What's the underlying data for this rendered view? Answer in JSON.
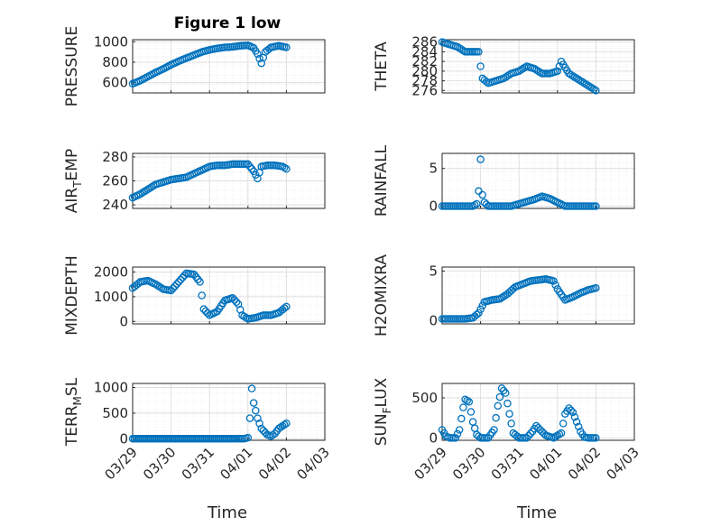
{
  "figure": {
    "title": "Figure 1 low",
    "xlabel": "Time"
  },
  "colors": {
    "marker": "#0072BD",
    "axis": "#262626",
    "grid": "#dfdfdf",
    "minor_grid": "#ebebeb"
  },
  "chart_data": [
    {
      "type": "scatter",
      "ylabel": "PRESSURE",
      "ylabel_sub": "",
      "yticks": [
        600,
        800,
        1000
      ],
      "ylim": [
        500,
        1020
      ],
      "xticks": [
        "03/29",
        "03/30",
        "03/31",
        "04/01",
        "04/02",
        "04/03"
      ],
      "xlim": [
        0,
        5
      ],
      "x_range": [
        0,
        4.0
      ],
      "grid": true,
      "minor_grid": true,
      "points": [
        [
          0,
          590
        ],
        [
          0.2,
          620
        ],
        [
          0.4,
          660
        ],
        [
          0.6,
          700
        ],
        [
          0.8,
          735
        ],
        [
          1.0,
          775
        ],
        [
          1.2,
          810
        ],
        [
          1.4,
          840
        ],
        [
          1.6,
          870
        ],
        [
          1.8,
          900
        ],
        [
          2.0,
          920
        ],
        [
          2.2,
          935
        ],
        [
          2.4,
          945
        ],
        [
          2.6,
          950
        ],
        [
          2.8,
          960
        ],
        [
          3.0,
          965
        ],
        [
          3.15,
          940
        ],
        [
          3.25,
          880
        ],
        [
          3.35,
          790
        ],
        [
          3.45,
          900
        ],
        [
          3.6,
          945
        ],
        [
          3.8,
          960
        ],
        [
          4.0,
          945
        ]
      ]
    },
    {
      "type": "scatter",
      "ylabel": "THETA",
      "ylabel_sub": "",
      "yticks": [
        276,
        278,
        280,
        282,
        284,
        286
      ],
      "ylim": [
        275.5,
        286.5
      ],
      "xticks": [
        "03/29",
        "03/30",
        "03/31",
        "04/01",
        "04/02",
        "04/03"
      ],
      "xlim": [
        0,
        5
      ],
      "x_range": [
        0,
        4.0
      ],
      "grid": true,
      "minor_grid": true,
      "points": [
        [
          0,
          286
        ],
        [
          0.2,
          285.5
        ],
        [
          0.4,
          285
        ],
        [
          0.6,
          284
        ],
        [
          0.8,
          284
        ],
        [
          0.95,
          284
        ],
        [
          1.0,
          281
        ],
        [
          1.05,
          278.5
        ],
        [
          1.2,
          277.5
        ],
        [
          1.4,
          278
        ],
        [
          1.6,
          278.5
        ],
        [
          1.8,
          279.5
        ],
        [
          2.0,
          280
        ],
        [
          2.2,
          281
        ],
        [
          2.4,
          280.5
        ],
        [
          2.6,
          279.5
        ],
        [
          2.8,
          279.5
        ],
        [
          3.0,
          280
        ],
        [
          3.1,
          282
        ],
        [
          3.3,
          279.5
        ],
        [
          3.5,
          278.5
        ],
        [
          3.7,
          277.5
        ],
        [
          3.9,
          276.5
        ],
        [
          4.0,
          276
        ]
      ]
    },
    {
      "type": "scatter",
      "ylabel": "AIR",
      "ylabel_sub": "TEMP",
      "yticks": [
        240,
        260,
        280
      ],
      "ylim": [
        237,
        283
      ],
      "xticks": [
        "03/29",
        "03/30",
        "03/31",
        "04/01",
        "04/02",
        "04/03"
      ],
      "xlim": [
        0,
        5
      ],
      "x_range": [
        0,
        4.0
      ],
      "grid": true,
      "minor_grid": true,
      "points": [
        [
          0,
          246
        ],
        [
          0.2,
          249
        ],
        [
          0.4,
          253
        ],
        [
          0.6,
          257
        ],
        [
          0.8,
          259
        ],
        [
          1.0,
          261
        ],
        [
          1.2,
          262
        ],
        [
          1.4,
          263
        ],
        [
          1.6,
          266
        ],
        [
          1.8,
          269
        ],
        [
          2.0,
          272
        ],
        [
          2.2,
          273
        ],
        [
          2.4,
          273
        ],
        [
          2.6,
          274
        ],
        [
          2.8,
          274
        ],
        [
          3.0,
          274
        ],
        [
          3.15,
          268
        ],
        [
          3.25,
          262
        ],
        [
          3.35,
          272
        ],
        [
          3.5,
          273
        ],
        [
          3.7,
          273
        ],
        [
          3.9,
          272
        ],
        [
          4.0,
          270
        ]
      ]
    },
    {
      "type": "scatter",
      "ylabel": "RAINFALL",
      "ylabel_sub": "",
      "yticks": [
        0,
        5
      ],
      "ylim": [
        -0.3,
        7
      ],
      "xticks": [
        "03/29",
        "03/30",
        "03/31",
        "04/01",
        "04/02",
        "04/03"
      ],
      "xlim": [
        0,
        5
      ],
      "x_range": [
        0,
        4.0
      ],
      "grid": true,
      "minor_grid": true,
      "points": [
        [
          0,
          0
        ],
        [
          0.2,
          0
        ],
        [
          0.4,
          0
        ],
        [
          0.6,
          0
        ],
        [
          0.8,
          0
        ],
        [
          0.9,
          0.3
        ],
        [
          0.95,
          2
        ],
        [
          1.0,
          6.2
        ],
        [
          1.05,
          1.5
        ],
        [
          1.1,
          0.5
        ],
        [
          1.2,
          0
        ],
        [
          1.4,
          0
        ],
        [
          1.6,
          0
        ],
        [
          1.8,
          0
        ],
        [
          2.0,
          0.3
        ],
        [
          2.2,
          0.6
        ],
        [
          2.4,
          0.9
        ],
        [
          2.6,
          1.3
        ],
        [
          2.8,
          1
        ],
        [
          3.0,
          0.5
        ],
        [
          3.2,
          0
        ],
        [
          3.4,
          0
        ],
        [
          3.6,
          0
        ],
        [
          3.8,
          0
        ],
        [
          4.0,
          0
        ]
      ]
    },
    {
      "type": "scatter",
      "ylabel": "MIXDEPTH",
      "ylabel_sub": "",
      "yticks": [
        0,
        1000,
        2000
      ],
      "ylim": [
        -100,
        2200
      ],
      "xticks": [
        "03/29",
        "03/30",
        "03/31",
        "04/01",
        "04/02",
        "04/03"
      ],
      "xlim": [
        0,
        5
      ],
      "x_range": [
        0,
        4.0
      ],
      "grid": true,
      "minor_grid": true,
      "points": [
        [
          0,
          1350
        ],
        [
          0.2,
          1600
        ],
        [
          0.4,
          1650
        ],
        [
          0.6,
          1500
        ],
        [
          0.8,
          1300
        ],
        [
          1.0,
          1250
        ],
        [
          1.2,
          1600
        ],
        [
          1.4,
          1950
        ],
        [
          1.6,
          1900
        ],
        [
          1.75,
          1600
        ],
        [
          1.85,
          500
        ],
        [
          2.0,
          250
        ],
        [
          2.2,
          400
        ],
        [
          2.4,
          850
        ],
        [
          2.6,
          950
        ],
        [
          2.75,
          700
        ],
        [
          2.85,
          250
        ],
        [
          3.0,
          100
        ],
        [
          3.2,
          150
        ],
        [
          3.4,
          250
        ],
        [
          3.6,
          250
        ],
        [
          3.8,
          350
        ],
        [
          4.0,
          600
        ]
      ]
    },
    {
      "type": "scatter",
      "ylabel": "H2OMIXRA",
      "ylabel_sub": "",
      "yticks": [
        0,
        5
      ],
      "ylim": [
        -0.3,
        5.4
      ],
      "xticks": [
        "03/29",
        "03/30",
        "03/31",
        "04/01",
        "04/02",
        "04/03"
      ],
      "xlim": [
        0,
        5
      ],
      "x_range": [
        0,
        4.0
      ],
      "grid": true,
      "minor_grid": true,
      "points": [
        [
          0,
          0.2
        ],
        [
          0.2,
          0.2
        ],
        [
          0.4,
          0.2
        ],
        [
          0.6,
          0.2
        ],
        [
          0.8,
          0.3
        ],
        [
          0.95,
          0.8
        ],
        [
          1.1,
          1.9
        ],
        [
          1.3,
          2.1
        ],
        [
          1.5,
          2.2
        ],
        [
          1.7,
          2.7
        ],
        [
          1.9,
          3.4
        ],
        [
          2.1,
          3.7
        ],
        [
          2.3,
          4
        ],
        [
          2.5,
          4.1
        ],
        [
          2.7,
          4.2
        ],
        [
          2.9,
          4
        ],
        [
          3.0,
          3.2
        ],
        [
          3.2,
          2.1
        ],
        [
          3.4,
          2.4
        ],
        [
          3.6,
          2.8
        ],
        [
          3.8,
          3.1
        ],
        [
          4.0,
          3.3
        ]
      ]
    },
    {
      "type": "scatter",
      "ylabel": "TERR",
      "ylabel_sub": "MSL",
      "yticks": [
        0,
        500,
        1000
      ],
      "ylim": [
        -30,
        1080
      ],
      "xticks": [
        "03/29",
        "03/30",
        "03/31",
        "04/01",
        "04/02",
        "04/03"
      ],
      "xlim": [
        0,
        5
      ],
      "x_range": [
        0,
        4.0
      ],
      "grid": true,
      "minor_grid": true,
      "points": [
        [
          0,
          0
        ],
        [
          0.3,
          0
        ],
        [
          0.6,
          0
        ],
        [
          0.9,
          0
        ],
        [
          1.2,
          0
        ],
        [
          1.5,
          0
        ],
        [
          1.8,
          0
        ],
        [
          2.1,
          0
        ],
        [
          2.4,
          0
        ],
        [
          2.7,
          0
        ],
        [
          2.9,
          0
        ],
        [
          3.0,
          20
        ],
        [
          3.05,
          400
        ],
        [
          3.1,
          980
        ],
        [
          3.15,
          700
        ],
        [
          3.25,
          400
        ],
        [
          3.35,
          200
        ],
        [
          3.5,
          80
        ],
        [
          3.6,
          50
        ],
        [
          3.7,
          100
        ],
        [
          3.8,
          200
        ],
        [
          3.9,
          250
        ],
        [
          4.0,
          300
        ]
      ]
    },
    {
      "type": "scatter",
      "ylabel": "SUN",
      "ylabel_sub": "FLUX",
      "yticks": [
        0,
        500
      ],
      "ylim": [
        -30,
        680
      ],
      "xticks": [
        "03/29",
        "03/30",
        "03/31",
        "04/01",
        "04/02",
        "04/03"
      ],
      "xlim": [
        0,
        5
      ],
      "x_range": [
        0,
        4.0
      ],
      "grid": true,
      "minor_grid": true,
      "points": [
        [
          0,
          100
        ],
        [
          0.1,
          20
        ],
        [
          0.2,
          0
        ],
        [
          0.35,
          0
        ],
        [
          0.45,
          100
        ],
        [
          0.55,
          380
        ],
        [
          0.6,
          480
        ],
        [
          0.7,
          450
        ],
        [
          0.8,
          200
        ],
        [
          0.9,
          40
        ],
        [
          1.0,
          0
        ],
        [
          1.2,
          0
        ],
        [
          1.35,
          100
        ],
        [
          1.45,
          400
        ],
        [
          1.55,
          620
        ],
        [
          1.65,
          560
        ],
        [
          1.75,
          300
        ],
        [
          1.85,
          60
        ],
        [
          2.0,
          0
        ],
        [
          2.2,
          0
        ],
        [
          2.35,
          80
        ],
        [
          2.45,
          150
        ],
        [
          2.55,
          100
        ],
        [
          2.7,
          30
        ],
        [
          2.9,
          0
        ],
        [
          3.1,
          60
        ],
        [
          3.2,
          300
        ],
        [
          3.3,
          370
        ],
        [
          3.4,
          320
        ],
        [
          3.5,
          200
        ],
        [
          3.6,
          80
        ],
        [
          3.7,
          10
        ],
        [
          3.8,
          0
        ],
        [
          4.0,
          0
        ]
      ]
    }
  ]
}
